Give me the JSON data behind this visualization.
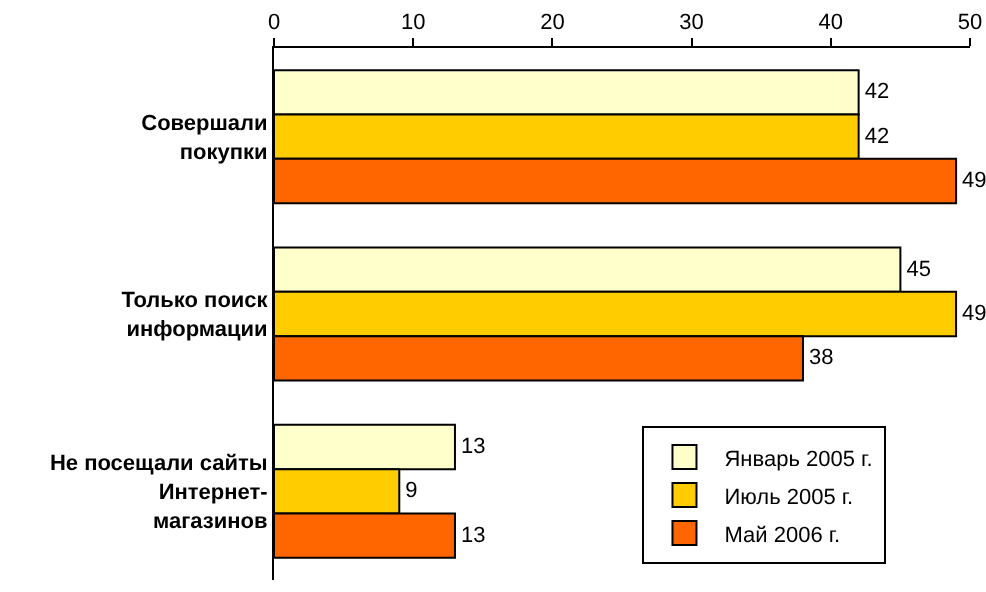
{
  "chart_data": {
    "type": "bar",
    "orientation": "horizontal",
    "categories": [
      "Совершали\nпокупки",
      "Только поиск\nинформации",
      "Не посещали сайты\nИнтернет-\nмагазинов"
    ],
    "series": [
      {
        "name": "Январь 2005 г.",
        "color": "#ffffcc",
        "values": [
          42,
          45,
          13
        ]
      },
      {
        "name": "Июль 2005 г.",
        "color": "#ffcc00",
        "values": [
          42,
          49,
          9
        ]
      },
      {
        "name": "Май 2006 г.",
        "color": "#ff6600",
        "values": [
          49,
          38,
          13
        ]
      }
    ],
    "xlim": [
      0,
      50
    ],
    "xticks": [
      0,
      10,
      20,
      30,
      40,
      50
    ],
    "data_labels": true,
    "grid": false,
    "legend": "bottom right"
  }
}
